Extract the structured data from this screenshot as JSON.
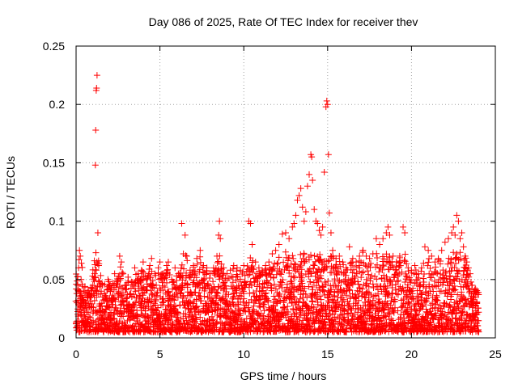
{
  "chart_data": {
    "type": "scatter",
    "title": "Day 086 of 2025, Rate Of TEC Index for receiver thev",
    "xlabel": "GPS time / hours",
    "ylabel": "ROTI / TECUs",
    "xlim": [
      0,
      25
    ],
    "ylim": [
      0,
      0.25
    ],
    "xticks": [
      0,
      5,
      10,
      15,
      20,
      25
    ],
    "xtick_labels": [
      "0",
      "5",
      "10",
      "15",
      "20",
      "25"
    ],
    "yticks": [
      0,
      0.05,
      0.1,
      0.15,
      0.2,
      0.25
    ],
    "ytick_labels": [
      "0",
      "0.05",
      "0.1",
      "0.15",
      "0.2",
      "0.25"
    ],
    "grid": true,
    "marker": "+",
    "color": "#ff0000",
    "series": [
      {
        "name": "ROTI",
        "points": [
          [
            0.0,
            0.012
          ],
          [
            0.05,
            0.03
          ],
          [
            0.1,
            0.045
          ],
          [
            0.15,
            0.06
          ],
          [
            0.2,
            0.075
          ],
          [
            0.25,
            0.07
          ],
          [
            0.3,
            0.05
          ],
          [
            0.35,
            0.035
          ],
          [
            0.4,
            0.028
          ],
          [
            0.5,
            0.02
          ],
          [
            0.6,
            0.03
          ],
          [
            0.7,
            0.035
          ],
          [
            0.8,
            0.038
          ],
          [
            0.9,
            0.042
          ],
          [
            1.0,
            0.045
          ],
          [
            1.1,
            0.055
          ],
          [
            1.15,
            0.148
          ],
          [
            1.17,
            0.178
          ],
          [
            1.2,
            0.212
          ],
          [
            1.22,
            0.214
          ],
          [
            1.25,
            0.225
          ],
          [
            1.3,
            0.09
          ],
          [
            1.35,
            0.062
          ],
          [
            1.4,
            0.048
          ],
          [
            1.5,
            0.04
          ],
          [
            1.7,
            0.046
          ],
          [
            1.9,
            0.05
          ],
          [
            2.1,
            0.043
          ],
          [
            2.3,
            0.055
          ],
          [
            2.5,
            0.048
          ],
          [
            2.6,
            0.07
          ],
          [
            2.7,
            0.065
          ],
          [
            2.9,
            0.045
          ],
          [
            3.1,
            0.052
          ],
          [
            3.3,
            0.048
          ],
          [
            3.5,
            0.06
          ],
          [
            3.7,
            0.055
          ],
          [
            3.9,
            0.058
          ],
          [
            4.0,
            0.065
          ],
          [
            4.2,
            0.05
          ],
          [
            4.4,
            0.062
          ],
          [
            4.5,
            0.068
          ],
          [
            4.7,
            0.055
          ],
          [
            4.9,
            0.06
          ],
          [
            5.0,
            0.065
          ],
          [
            5.2,
            0.055
          ],
          [
            5.4,
            0.062
          ],
          [
            5.5,
            0.065
          ],
          [
            5.7,
            0.05
          ],
          [
            5.9,
            0.06
          ],
          [
            6.1,
            0.055
          ],
          [
            6.3,
            0.098
          ],
          [
            6.4,
            0.072
          ],
          [
            6.5,
            0.088
          ],
          [
            6.6,
            0.07
          ],
          [
            6.8,
            0.058
          ],
          [
            7.0,
            0.062
          ],
          [
            7.2,
            0.068
          ],
          [
            7.4,
            0.075
          ],
          [
            7.6,
            0.062
          ],
          [
            7.8,
            0.06
          ],
          [
            8.0,
            0.055
          ],
          [
            8.2,
            0.06
          ],
          [
            8.4,
            0.07
          ],
          [
            8.5,
            0.088
          ],
          [
            8.55,
            0.1
          ],
          [
            8.6,
            0.085
          ],
          [
            8.8,
            0.06
          ],
          [
            9.0,
            0.055
          ],
          [
            9.2,
            0.058
          ],
          [
            9.4,
            0.062
          ],
          [
            9.6,
            0.06
          ],
          [
            9.8,
            0.058
          ],
          [
            10.0,
            0.062
          ],
          [
            10.3,
            0.1
          ],
          [
            10.4,
            0.098
          ],
          [
            10.5,
            0.08
          ],
          [
            10.7,
            0.065
          ],
          [
            10.9,
            0.06
          ],
          [
            11.1,
            0.058
          ],
          [
            11.3,
            0.062
          ],
          [
            11.5,
            0.065
          ],
          [
            11.7,
            0.072
          ],
          [
            11.9,
            0.075
          ],
          [
            12.1,
            0.08
          ],
          [
            12.3,
            0.089
          ],
          [
            12.5,
            0.09
          ],
          [
            12.7,
            0.085
          ],
          [
            12.9,
            0.095
          ],
          [
            13.0,
            0.098
          ],
          [
            13.1,
            0.105
          ],
          [
            13.2,
            0.118
          ],
          [
            13.3,
            0.122
          ],
          [
            13.4,
            0.128
          ],
          [
            13.5,
            0.112
          ],
          [
            13.6,
            0.1
          ],
          [
            13.7,
            0.108
          ],
          [
            13.8,
            0.13
          ],
          [
            13.9,
            0.14
          ],
          [
            14.0,
            0.157
          ],
          [
            14.05,
            0.155
          ],
          [
            14.1,
            0.135
          ],
          [
            14.2,
            0.11
          ],
          [
            14.3,
            0.1
          ],
          [
            14.4,
            0.098
          ],
          [
            14.5,
            0.092
          ],
          [
            14.6,
            0.088
          ],
          [
            14.7,
            0.095
          ],
          [
            14.8,
            0.142
          ],
          [
            14.9,
            0.198
          ],
          [
            14.95,
            0.203
          ],
          [
            15.0,
            0.2
          ],
          [
            15.05,
            0.157
          ],
          [
            15.1,
            0.107
          ],
          [
            15.2,
            0.09
          ],
          [
            15.3,
            0.075
          ],
          [
            15.5,
            0.068
          ],
          [
            15.7,
            0.07
          ],
          [
            15.9,
            0.065
          ],
          [
            16.1,
            0.06
          ],
          [
            16.3,
            0.078
          ],
          [
            16.5,
            0.068
          ],
          [
            16.7,
            0.065
          ],
          [
            16.9,
            0.07
          ],
          [
            17.1,
            0.075
          ],
          [
            17.3,
            0.07
          ],
          [
            17.5,
            0.068
          ],
          [
            17.7,
            0.072
          ],
          [
            17.9,
            0.085
          ],
          [
            18.1,
            0.08
          ],
          [
            18.3,
            0.085
          ],
          [
            18.5,
            0.09
          ],
          [
            18.6,
            0.095
          ],
          [
            18.7,
            0.088
          ],
          [
            18.9,
            0.07
          ],
          [
            19.1,
            0.065
          ],
          [
            19.3,
            0.07
          ],
          [
            19.5,
            0.095
          ],
          [
            19.6,
            0.09
          ],
          [
            19.8,
            0.06
          ],
          [
            20.0,
            0.058
          ],
          [
            20.2,
            0.062
          ],
          [
            20.4,
            0.055
          ],
          [
            20.6,
            0.06
          ],
          [
            20.8,
            0.078
          ],
          [
            21.0,
            0.075
          ],
          [
            21.2,
            0.07
          ],
          [
            21.4,
            0.065
          ],
          [
            21.6,
            0.068
          ],
          [
            21.8,
            0.075
          ],
          [
            22.0,
            0.082
          ],
          [
            22.2,
            0.085
          ],
          [
            22.4,
            0.09
          ],
          [
            22.5,
            0.095
          ],
          [
            22.6,
            0.088
          ],
          [
            22.7,
            0.105
          ],
          [
            22.8,
            0.1
          ],
          [
            22.9,
            0.085
          ],
          [
            23.0,
            0.09
          ],
          [
            23.1,
            0.078
          ],
          [
            23.2,
            0.07
          ],
          [
            23.3,
            0.065
          ],
          [
            23.4,
            0.06
          ],
          [
            23.5,
            0.055
          ],
          [
            23.6,
            0.045
          ],
          [
            23.7,
            0.04
          ],
          [
            23.8,
            0.035
          ],
          [
            23.9,
            0.03
          ],
          [
            24.0,
            0.022
          ]
        ]
      }
    ],
    "dense_band": {
      "x_range": [
        0,
        24
      ],
      "baseline_min": 0.005,
      "baseline_max": 0.04,
      "note": "dense scatter of ROTI values mostly between 0.005 and 0.04 throughout the day"
    }
  }
}
